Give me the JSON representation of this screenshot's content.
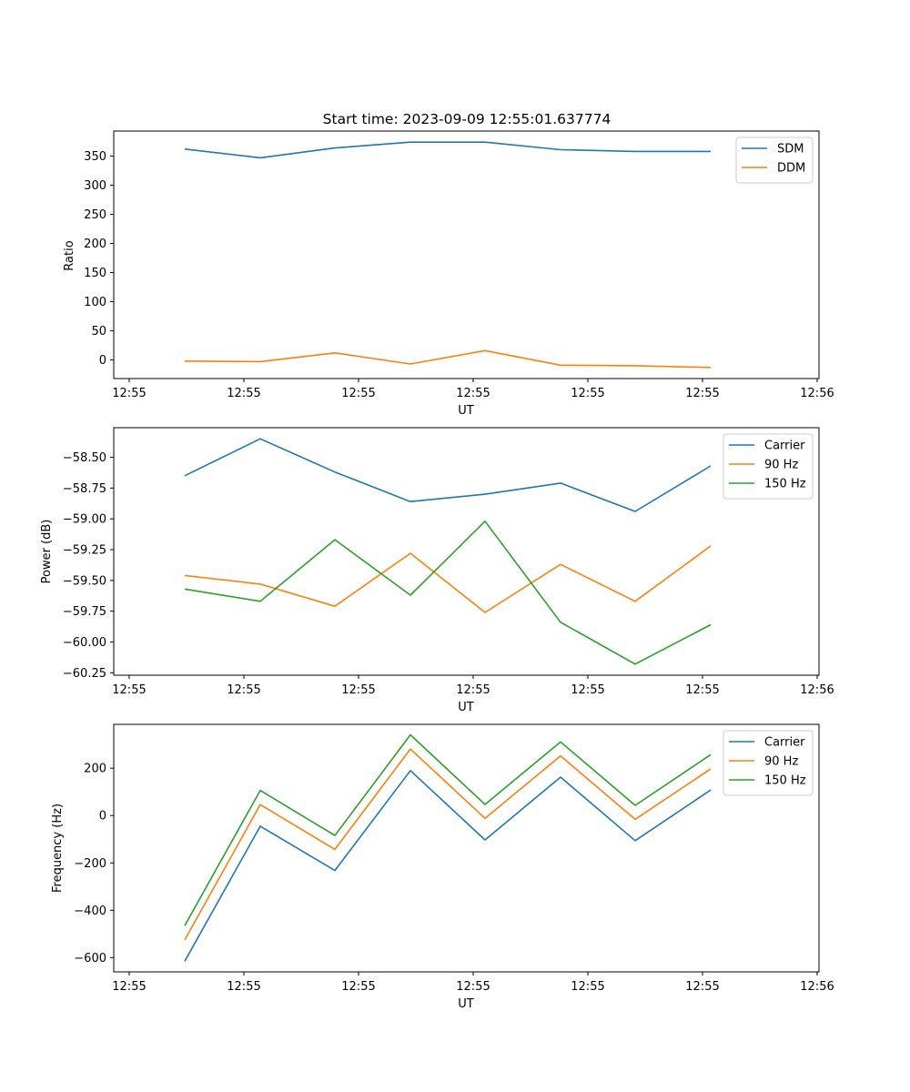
{
  "chart_data": [
    {
      "type": "line",
      "title": "Start time: 2023-09-09 12:55:01.637774",
      "xlabel": "UT",
      "ylabel": "Ratio",
      "x_tick_labels": [
        "12:55",
        "12:55",
        "12:55",
        "12:55",
        "12:55",
        "12:55",
        "12:56"
      ],
      "y_ticks": [
        0,
        50,
        100,
        150,
        200,
        250,
        300,
        350
      ],
      "y_tick_labels": [
        "0",
        "50",
        "100",
        "150",
        "200",
        "250",
        "300",
        "350"
      ],
      "ylim": [
        -32,
        393
      ],
      "legend_position": "top-right",
      "series": [
        {
          "name": "SDM",
          "color": "#1f77b4",
          "values": [
            362,
            347,
            364,
            374,
            374,
            361,
            358,
            358
          ]
        },
        {
          "name": "DDM",
          "color": "#ff7f0e",
          "values": [
            -2,
            -3,
            12,
            -7,
            16,
            -9,
            -10,
            -13
          ]
        }
      ]
    },
    {
      "type": "line",
      "title": "",
      "xlabel": "UT",
      "ylabel": "Power (dB)",
      "x_tick_labels": [
        "12:55",
        "12:55",
        "12:55",
        "12:55",
        "12:55",
        "12:55",
        "12:56"
      ],
      "y_ticks": [
        -60.25,
        -60.0,
        -59.75,
        -59.5,
        -59.25,
        -59.0,
        -58.75,
        -58.5
      ],
      "y_tick_labels": [
        "−60.25",
        "−60.00",
        "−59.75",
        "−59.50",
        "−59.25",
        "−59.00",
        "−58.75",
        "−58.50"
      ],
      "ylim": [
        -60.27,
        -58.26
      ],
      "legend_position": "top-right",
      "series": [
        {
          "name": "Carrier",
          "color": "#1f77b4",
          "values": [
            -58.65,
            -58.35,
            -58.62,
            -58.86,
            -58.8,
            -58.71,
            -58.94,
            -58.57
          ]
        },
        {
          "name": "90 Hz",
          "color": "#ff7f0e",
          "values": [
            -59.46,
            -59.53,
            -59.71,
            -59.28,
            -59.76,
            -59.37,
            -59.67,
            -59.22
          ]
        },
        {
          "name": "150 Hz",
          "color": "#2ca02c",
          "values": [
            -59.57,
            -59.67,
            -59.17,
            -59.62,
            -59.02,
            -59.84,
            -60.18,
            -59.86
          ]
        }
      ]
    },
    {
      "type": "line",
      "title": "",
      "xlabel": "UT",
      "ylabel": "Frequency (Hz)",
      "x_tick_labels": [
        "12:55",
        "12:55",
        "12:55",
        "12:55",
        "12:55",
        "12:55",
        "12:56"
      ],
      "y_ticks": [
        -600,
        -400,
        -200,
        0,
        200
      ],
      "y_tick_labels": [
        "−600",
        "−400",
        "−200",
        "0",
        "200"
      ],
      "ylim": [
        -660,
        385
      ],
      "legend_position": "top-right",
      "series": [
        {
          "name": "Carrier",
          "color": "#1f77b4",
          "values": [
            -615,
            -45,
            -232,
            190,
            -103,
            162,
            -106,
            108
          ]
        },
        {
          "name": "90 Hz",
          "color": "#ff7f0e",
          "values": [
            -525,
            46,
            -143,
            281,
            -12,
            252,
            -16,
            197
          ]
        },
        {
          "name": "150 Hz",
          "color": "#2ca02c",
          "values": [
            -465,
            106,
            -84,
            341,
            47,
            311,
            43,
            257
          ]
        }
      ]
    }
  ]
}
